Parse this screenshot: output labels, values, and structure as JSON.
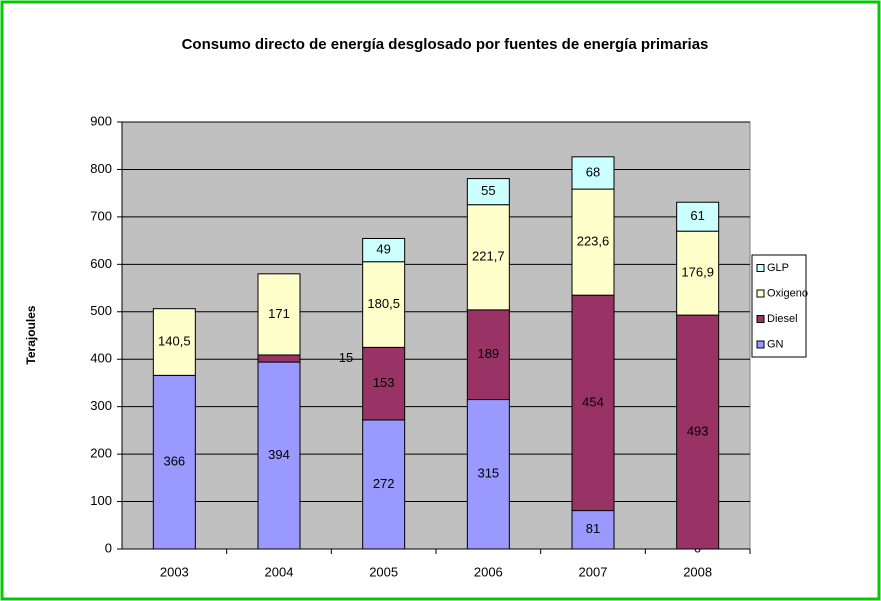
{
  "chart_data": {
    "type": "stacked_bar",
    "title": "Consumo directo de energía desglosado por fuentes de energía primarias",
    "y_label": "Terajoules",
    "categories": [
      "2003",
      "2004",
      "2005",
      "2006",
      "2007",
      "2008"
    ],
    "series": [
      {
        "name": "GN",
        "color": "#9999ff",
        "values": [
          366,
          394,
          272,
          315,
          81,
          0
        ]
      },
      {
        "name": "Diesel",
        "color": "#993366",
        "values": [
          null,
          15,
          153,
          189,
          454,
          493
        ]
      },
      {
        "name": "Oxigeno",
        "color": "#ffffcc",
        "values": [
          140.5,
          171,
          180.5,
          221.7,
          223.6,
          176.9
        ],
        "value_labels": [
          "140,5",
          "171",
          "180,5",
          "221,7",
          "223,6",
          "176,9"
        ]
      },
      {
        "name": "GLP",
        "color": "#ccffff",
        "values": [
          null,
          null,
          49,
          55,
          68,
          61
        ]
      }
    ],
    "ylim": [
      0,
      900
    ],
    "yticks": [
      0,
      100,
      200,
      300,
      400,
      500,
      600,
      700,
      800,
      900
    ],
    "grid": true,
    "legend": "right"
  }
}
